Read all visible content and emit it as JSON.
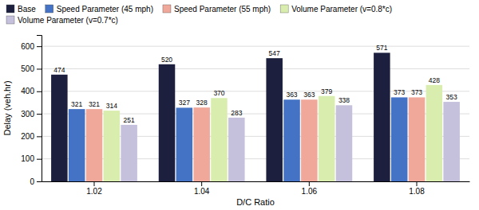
{
  "chart_data": {
    "type": "bar",
    "categories": [
      "1.02",
      "1.04",
      "1.06",
      "1.08"
    ],
    "series": [
      {
        "name": "Base",
        "color": "#1c1f3d",
        "values": [
          474,
          520,
          547,
          571
        ]
      },
      {
        "name": "Speed Parameter (45 mph)",
        "color": "#4472c4",
        "values": [
          321,
          327,
          363,
          373
        ]
      },
      {
        "name": "Speed Parameter (55 mph)",
        "color": "#f0a89a",
        "values": [
          321,
          328,
          363,
          373
        ]
      },
      {
        "name": "Volume Parameter (v=0.8*c)",
        "color": "#d9eeae",
        "values": [
          314,
          370,
          379,
          428
        ]
      },
      {
        "name": "Volume Parameter (v=0.7*c)",
        "color": "#c5c0dc",
        "values": [
          251,
          283,
          338,
          353
        ]
      }
    ],
    "xlabel": "D/C Ratio",
    "ylabel": "Delay (veh.hr)",
    "ylim": [
      0,
      650
    ],
    "yticks": [
      0,
      100,
      200,
      300,
      400,
      500,
      600
    ],
    "grid": true,
    "legend": "top",
    "data_labels": true
  }
}
